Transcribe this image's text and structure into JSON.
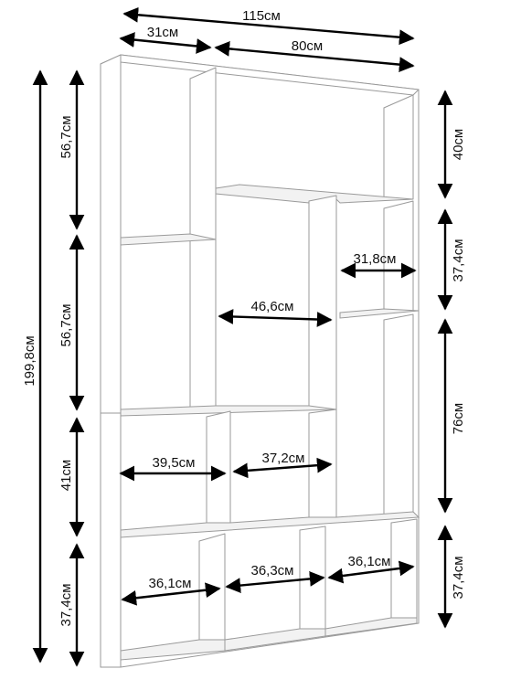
{
  "overall": {
    "width": "115см",
    "height": "199,8см"
  },
  "top_widths": {
    "left": "31см",
    "right": "80см"
  },
  "left_heights": [
    "56,7см",
    "56,7см",
    "41см",
    "37,4см"
  ],
  "right_heights": [
    "40см",
    "37,4см",
    "76см",
    "37,4см"
  ],
  "inner_widths": {
    "small_right_cell": "31,8см",
    "tall_center_cell": "46,6см",
    "row3_left": "39,5см",
    "row3_middle": "37,2см",
    "bottom_left": "36,1см",
    "bottom_middle": "36,3см",
    "bottom_right": "36,1см"
  },
  "colors": {
    "line": "#000000",
    "panel_edge": "#9a9a9a",
    "panel_fill": "#ffffff"
  }
}
